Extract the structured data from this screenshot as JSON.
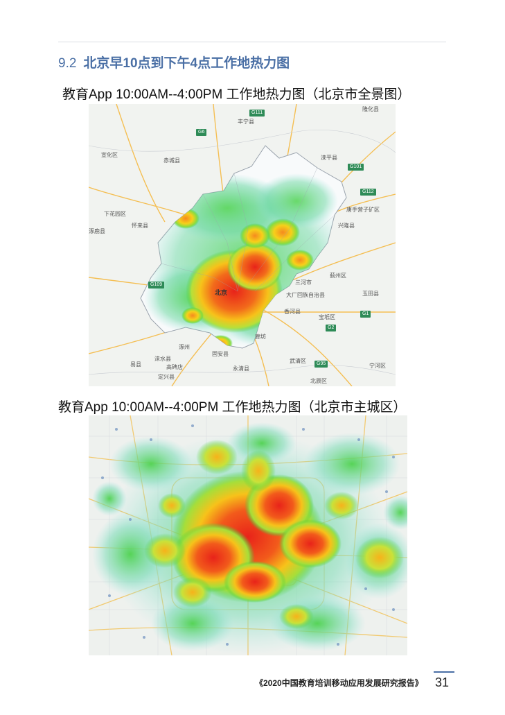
{
  "section": {
    "number": "9.2",
    "title": "北京早10点到下午4点工作地热力图"
  },
  "figure1": {
    "caption": "教育App 10:00AM--4:00PM 工作地热力图（北京市全景图）",
    "labels": {
      "city": "北京",
      "l1": "丰宁县",
      "l2": "隆化县",
      "l3": "赤城县",
      "l4": "滦平县",
      "l5": "兴隆县",
      "l6": "怀来县",
      "l7": "涿鹿县",
      "l8": "下花园区",
      "l9": "蓟州区",
      "l10": "玉田县",
      "l11": "三河市",
      "l12": "大厂回族自治县",
      "l13": "香河县",
      "l14": "宝坻区",
      "l15": "涿州",
      "l16": "固安县",
      "l17": "廊坊",
      "l18": "永清县",
      "l19": "武清区",
      "l20": "北辰区",
      "l21": "高碑店",
      "l22": "定兴县",
      "l23": "涞水县",
      "l24": "易县",
      "l25": "宣化区",
      "l26": "唐手营子矿区",
      "l27": "宁河区"
    },
    "shields": {
      "s1": "G111",
      "s2": "G101",
      "s3": "G112",
      "s4": "G109",
      "s5": "G6",
      "s6": "G1",
      "s7": "G2",
      "s8": "G95"
    }
  },
  "figure2": {
    "caption": "教育App 10:00AM--4:00PM 工作地热力图（北京市主城区）"
  },
  "footer": {
    "report": "《2020中国教育培训移动应用发展研究报告》",
    "page": "31"
  },
  "colors": {
    "accent": "#4a6fa5",
    "heat_high": "#e8231a",
    "heat_mid": "#f7c21a",
    "heat_low": "#3ecf3e"
  }
}
